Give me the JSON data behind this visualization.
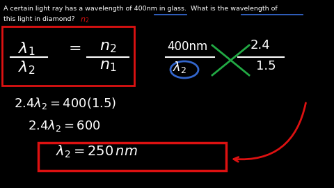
{
  "background_color": "#000000",
  "text_color": "#ffffff",
  "red_color": "#dd1111",
  "blue_color": "#3366cc",
  "green_color": "#22aa44",
  "figsize": [
    4.8,
    2.7
  ],
  "dpi": 100,
  "title_line1": "A certain light ray has a wavelength of 400nm in glass.  What is the wavelength of",
  "title_line2": "this light in diamond?",
  "eq1": "2.4λ₂ = 400(1.5)",
  "eq2": "2.4λ₂ = 600",
  "eq3": "λ₂ = 250 nm"
}
